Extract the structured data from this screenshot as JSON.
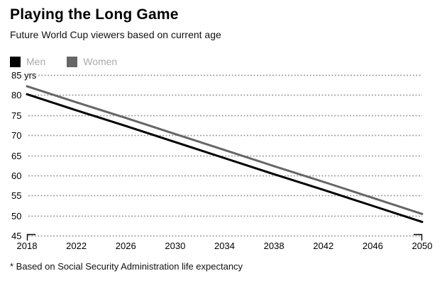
{
  "header": {
    "title": "Playing the Long Game",
    "subtitle": "Future World Cup viewers based on current age"
  },
  "legend": {
    "label_color": "#aaaaaa",
    "items": [
      {
        "label": "Men",
        "color": "#000000"
      },
      {
        "label": "Women",
        "color": "#666666"
      }
    ]
  },
  "footnote": "* Based on Social Security Administration life expectancy",
  "chart_data": {
    "type": "line",
    "title": "Playing the Long Game",
    "subtitle": "Future World Cup viewers based on current age",
    "xlabel": "",
    "ylabel": "",
    "x": [
      2018,
      2022,
      2026,
      2030,
      2034,
      2038,
      2042,
      2046,
      2050
    ],
    "x_tick_labels": [
      "2018",
      "2022",
      "2026",
      "2030",
      "2034",
      "2038",
      "2042",
      "2046",
      "2050"
    ],
    "series": [
      {
        "name": "Men",
        "color": "#000000",
        "values": [
          80.2,
          76.2,
          72.3,
          68.3,
          64.3,
          60.3,
          56.4,
          52.4,
          48.4
        ]
      },
      {
        "name": "Women",
        "color": "#666666",
        "values": [
          82.2,
          78.2,
          74.3,
          70.3,
          66.3,
          62.3,
          58.4,
          54.4,
          50.4
        ]
      }
    ],
    "xlim": [
      2018,
      2050
    ],
    "ylim": [
      45,
      85
    ],
    "y_ticks": [
      45,
      50,
      55,
      60,
      65,
      70,
      75,
      80,
      85
    ],
    "y_tick_labels": [
      "45",
      "50",
      "55",
      "60",
      "65",
      "70",
      "75",
      "80",
      "85 yrs"
    ],
    "grid": "horizontal-dotted",
    "gridline_color": "#999999",
    "legend_position": "top-left",
    "footnote": "* Based on Social Security Administration life expectancy"
  }
}
